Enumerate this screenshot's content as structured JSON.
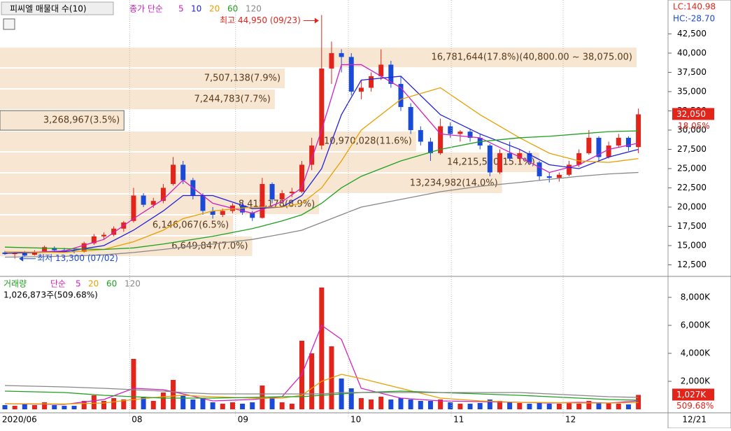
{
  "chart_data": {
    "type": "candlestick",
    "title": "피씨엘 매물대 수(10)",
    "ma_legend": {
      "name": "종가 단순",
      "periods": [
        {
          "label": "5",
          "color": "#d020c0"
        },
        {
          "label": "10",
          "color": "#2020e0"
        },
        {
          "label": "20",
          "color": "#e8a000"
        },
        {
          "label": "60",
          "color": "#20a020"
        },
        {
          "label": "120",
          "color": "#888888"
        }
      ]
    },
    "lc_label": "LC:140.98",
    "hc_label": "HC:-28.70",
    "high_annotation": {
      "label": "최고 44,950 (09/23)",
      "value": 44950,
      "index": 32
    },
    "low_annotation": {
      "label": "최저 13,300 (07/02)",
      "value": 13300,
      "index": 1
    },
    "last_price": {
      "value": 32050,
      "label": "32,050",
      "change": "18.05%"
    },
    "up_color": "#e3241b",
    "down_color": "#1a4bd8",
    "ylim": [
      11000,
      46900
    ],
    "yticks": [
      {
        "value": 12500,
        "label": "12,500"
      },
      {
        "value": 15000,
        "label": "15,000"
      },
      {
        "value": 17500,
        "label": "17,500"
      },
      {
        "value": 20000,
        "label": "20,000"
      },
      {
        "value": 22500,
        "label": "22,500"
      },
      {
        "value": 25000,
        "label": "25,000"
      },
      {
        "value": 27500,
        "label": "27,500"
      },
      {
        "value": 30000,
        "label": "30,000"
      },
      {
        "value": 32500,
        "label": "32,500"
      },
      {
        "value": 35000,
        "label": "35,000"
      },
      {
        "value": 37500,
        "label": "37,500"
      },
      {
        "value": 40000,
        "label": "40,000"
      },
      {
        "value": 42500,
        "label": "42,500"
      }
    ],
    "xticks": [
      {
        "value": -0.5,
        "label": "2020/06"
      },
      {
        "value": 12.6,
        "label": "08"
      },
      {
        "value": 23.3,
        "label": "09"
      },
      {
        "value": 34.7,
        "label": "10"
      },
      {
        "value": 45.1,
        "label": "11"
      },
      {
        "value": 56.4,
        "label": "12"
      }
    ],
    "last_date": "12/21",
    "candles": [
      [
        14100,
        14300,
        13800,
        13900
      ],
      [
        13900,
        14200,
        13300,
        14000
      ],
      [
        14000,
        14300,
        13600,
        13700
      ],
      [
        13800,
        14400,
        13700,
        14200
      ],
      [
        14200,
        15000,
        14100,
        14800
      ],
      [
        14700,
        14900,
        14200,
        14400
      ],
      [
        14400,
        14700,
        14100,
        14300
      ],
      [
        14300,
        14600,
        14000,
        14200
      ],
      [
        14200,
        15500,
        14100,
        15300
      ],
      [
        15300,
        16500,
        15100,
        16200
      ],
      [
        16200,
        16700,
        15800,
        16400
      ],
      [
        16400,
        17500,
        16200,
        17200
      ],
      [
        17200,
        18200,
        16800,
        18000
      ],
      [
        18200,
        22500,
        18000,
        21500
      ],
      [
        21500,
        21800,
        20000,
        20300
      ],
      [
        20300,
        21200,
        19900,
        20800
      ],
      [
        20800,
        23000,
        20500,
        22500
      ],
      [
        23000,
        26500,
        22800,
        25500
      ],
      [
        25500,
        26000,
        23000,
        23500
      ],
      [
        23500,
        23800,
        21000,
        21500
      ],
      [
        21500,
        21800,
        19000,
        19500
      ],
      [
        19500,
        20000,
        18500,
        19000
      ],
      [
        19000,
        19800,
        18700,
        19500
      ],
      [
        19500,
        20500,
        19200,
        20200
      ],
      [
        20200,
        20600,
        19000,
        19300
      ],
      [
        19300,
        19500,
        18200,
        18600
      ],
      [
        18600,
        23800,
        18500,
        23000
      ],
      [
        23000,
        23200,
        20500,
        21000
      ],
      [
        21000,
        22200,
        20800,
        21800
      ],
      [
        21800,
        22500,
        21300,
        22000
      ],
      [
        22000,
        26000,
        21800,
        25500
      ],
      [
        25500,
        29000,
        24800,
        28000
      ],
      [
        28000,
        44950,
        27500,
        38000
      ],
      [
        38000,
        41500,
        36000,
        40000
      ],
      [
        40000,
        40500,
        37500,
        39500
      ],
      [
        39500,
        40000,
        34500,
        35000
      ],
      [
        35000,
        36500,
        34000,
        35500
      ],
      [
        35500,
        37500,
        35000,
        37000
      ],
      [
        37000,
        40500,
        36500,
        38500
      ],
      [
        38500,
        39000,
        35500,
        36000
      ],
      [
        36000,
        37000,
        32500,
        33000
      ],
      [
        33000,
        33500,
        29500,
        30000
      ],
      [
        30000,
        30500,
        28000,
        28500
      ],
      [
        28500,
        29000,
        26000,
        27000
      ],
      [
        27000,
        31500,
        26800,
        30500
      ],
      [
        30500,
        31000,
        29000,
        29500
      ],
      [
        29500,
        30000,
        28500,
        29800
      ],
      [
        29800,
        30200,
        28500,
        29000
      ],
      [
        29000,
        29500,
        27500,
        28000
      ],
      [
        28000,
        28200,
        24000,
        24500
      ],
      [
        24500,
        27500,
        24300,
        27000
      ],
      [
        27000,
        28500,
        26000,
        26300
      ],
      [
        26300,
        27500,
        25800,
        27000
      ],
      [
        27000,
        27300,
        25500,
        25800
      ],
      [
        25800,
        26000,
        23500,
        24000
      ],
      [
        24000,
        24500,
        23200,
        23800
      ],
      [
        23800,
        24500,
        23300,
        24200
      ],
      [
        24200,
        26000,
        24000,
        25500
      ],
      [
        25500,
        27500,
        25200,
        27000
      ],
      [
        27000,
        30000,
        26800,
        29000
      ],
      [
        29000,
        29200,
        26000,
        26500
      ],
      [
        26500,
        28500,
        26300,
        28000
      ],
      [
        28000,
        29500,
        27800,
        29000
      ],
      [
        29000,
        29200,
        27300,
        27800
      ],
      [
        27800,
        32800,
        27000,
        32050
      ]
    ],
    "ma_x": [
      0,
      6,
      10,
      13,
      16,
      18,
      21,
      25,
      28,
      30,
      32,
      34,
      36,
      40,
      44,
      48,
      52,
      55,
      58,
      61,
      64
    ],
    "ma_series": [
      {
        "values": [
          14000,
          14300,
          15800,
          18500,
          21000,
          23500,
          20500,
          19200,
          20700,
          22500,
          30000,
          38500,
          38500,
          35500,
          29500,
          29000,
          26500,
          24500,
          25500,
          27500,
          28300
        ]
      },
      {
        "values": [
          14000,
          14200,
          15000,
          17000,
          19500,
          21500,
          21500,
          19800,
          20000,
          21500,
          25000,
          32000,
          36500,
          37000,
          32000,
          29500,
          27500,
          25500,
          25000,
          26500,
          27500
        ]
      },
      {
        "values": [
          14200,
          14100,
          14500,
          15500,
          17000,
          18500,
          19500,
          20000,
          20000,
          20500,
          22500,
          26000,
          30000,
          34000,
          35500,
          32000,
          29000,
          27000,
          26000,
          25800,
          26300
        ]
      },
      {
        "values": [
          14800,
          14600,
          14500,
          14700,
          15200,
          15600,
          16200,
          17200,
          18200,
          19000,
          20500,
          22500,
          24000,
          26000,
          27500,
          28500,
          29000,
          29200,
          29500,
          29800,
          29900
        ]
      },
      {
        "values": [
          13500,
          13600,
          13800,
          14100,
          14500,
          14800,
          15200,
          15800,
          16500,
          17000,
          18000,
          19000,
          20000,
          21000,
          22000,
          22700,
          23200,
          23600,
          24000,
          24300,
          24500
        ]
      }
    ],
    "volume_profile": [
      {
        "low": 38075,
        "high": 40800,
        "volume": 16781644,
        "label": "16,781,644(17.8%)(40,800.00 ~ 38,075.00)"
      },
      {
        "low": 35350,
        "high": 38075,
        "volume": 7507138,
        "label": "7,507,138(7.9%)"
      },
      {
        "low": 32625,
        "high": 35350,
        "volume": 7244783,
        "label": "7,244,783(7.7%)"
      },
      {
        "low": 29900,
        "high": 32625,
        "volume": 3268967,
        "label": "3,268,967(3.5%)"
      },
      {
        "low": 27175,
        "high": 29900,
        "volume": 10970028,
        "label": "10,970,028(11.6%)"
      },
      {
        "low": 24450,
        "high": 27175,
        "volume": 14215520,
        "label": "14,215,520(15.1%)"
      },
      {
        "low": 21725,
        "high": 24450,
        "volume": 13234982,
        "label": "13,234,982(14.0%)"
      },
      {
        "low": 19000,
        "high": 21725,
        "volume": 8413178,
        "label": "8,413,178(8.9%)"
      },
      {
        "low": 16275,
        "high": 19000,
        "volume": 6146067,
        "label": "6,146,067(6.5%)"
      },
      {
        "low": 13550,
        "high": 16275,
        "volume": 6649847,
        "label": "6,649,847(7.0%)"
      }
    ],
    "volume": {
      "title": "거래량",
      "ma_legend": {
        "name": "단순",
        "periods": [
          {
            "label": "5",
            "color": "#d020c0"
          },
          {
            "label": "20",
            "color": "#e8a000"
          },
          {
            "label": "60",
            "color": "#20a020"
          },
          {
            "label": "120",
            "color": "#888888"
          }
        ]
      },
      "info": "1,026,873주(509.68%)",
      "last": {
        "value": 1027,
        "label": "1,027K",
        "change": "509.68%"
      },
      "ylim": [
        0,
        9350
      ],
      "yticks": [
        {
          "value": 2000,
          "label": "2,000K"
        },
        {
          "value": 4000,
          "label": "4,000K"
        },
        {
          "value": 6000,
          "label": "6,000K"
        },
        {
          "value": 8000,
          "label": "8,000K"
        }
      ],
      "values": [
        300,
        250,
        400,
        300,
        500,
        300,
        250,
        250,
        600,
        1000,
        600,
        800,
        700,
        3600,
        900,
        600,
        1200,
        2100,
        1000,
        700,
        800,
        500,
        400,
        500,
        400,
        500,
        1700,
        800,
        500,
        400,
        4900,
        4000,
        8700,
        4500,
        2200,
        1500,
        800,
        700,
        900,
        700,
        800,
        700,
        600,
        600,
        700,
        500,
        400,
        400,
        450,
        700,
        600,
        500,
        450,
        400,
        500,
        400,
        400,
        500,
        400,
        600,
        500,
        450,
        400,
        350,
        1027
      ],
      "ma_series": [
        {
          "values": [
            400,
            350,
            700,
            1500,
            1400,
            1100,
            600,
            700,
            900,
            2500,
            6000,
            5000,
            1500,
            800,
            600,
            550,
            500,
            450,
            500,
            450,
            600
          ]
        },
        {
          "values": [
            400,
            380,
            450,
            700,
            900,
            1000,
            900,
            800,
            800,
            1000,
            2000,
            2500,
            2200,
            1500,
            800,
            600,
            500,
            480,
            450,
            450,
            480
          ]
        },
        {
          "values": [
            1300,
            1200,
            1000,
            900,
            800,
            800,
            800,
            850,
            900,
            900,
            1000,
            1100,
            1200,
            1300,
            1200,
            1100,
            1000,
            900,
            800,
            700,
            650
          ]
        },
        {
          "values": [
            1700,
            1600,
            1500,
            1400,
            1300,
            1200,
            1100,
            1100,
            1100,
            1100,
            1100,
            1200,
            1200,
            1200,
            1200,
            1200,
            1200,
            1100,
            1000,
            900,
            850
          ]
        }
      ]
    }
  }
}
